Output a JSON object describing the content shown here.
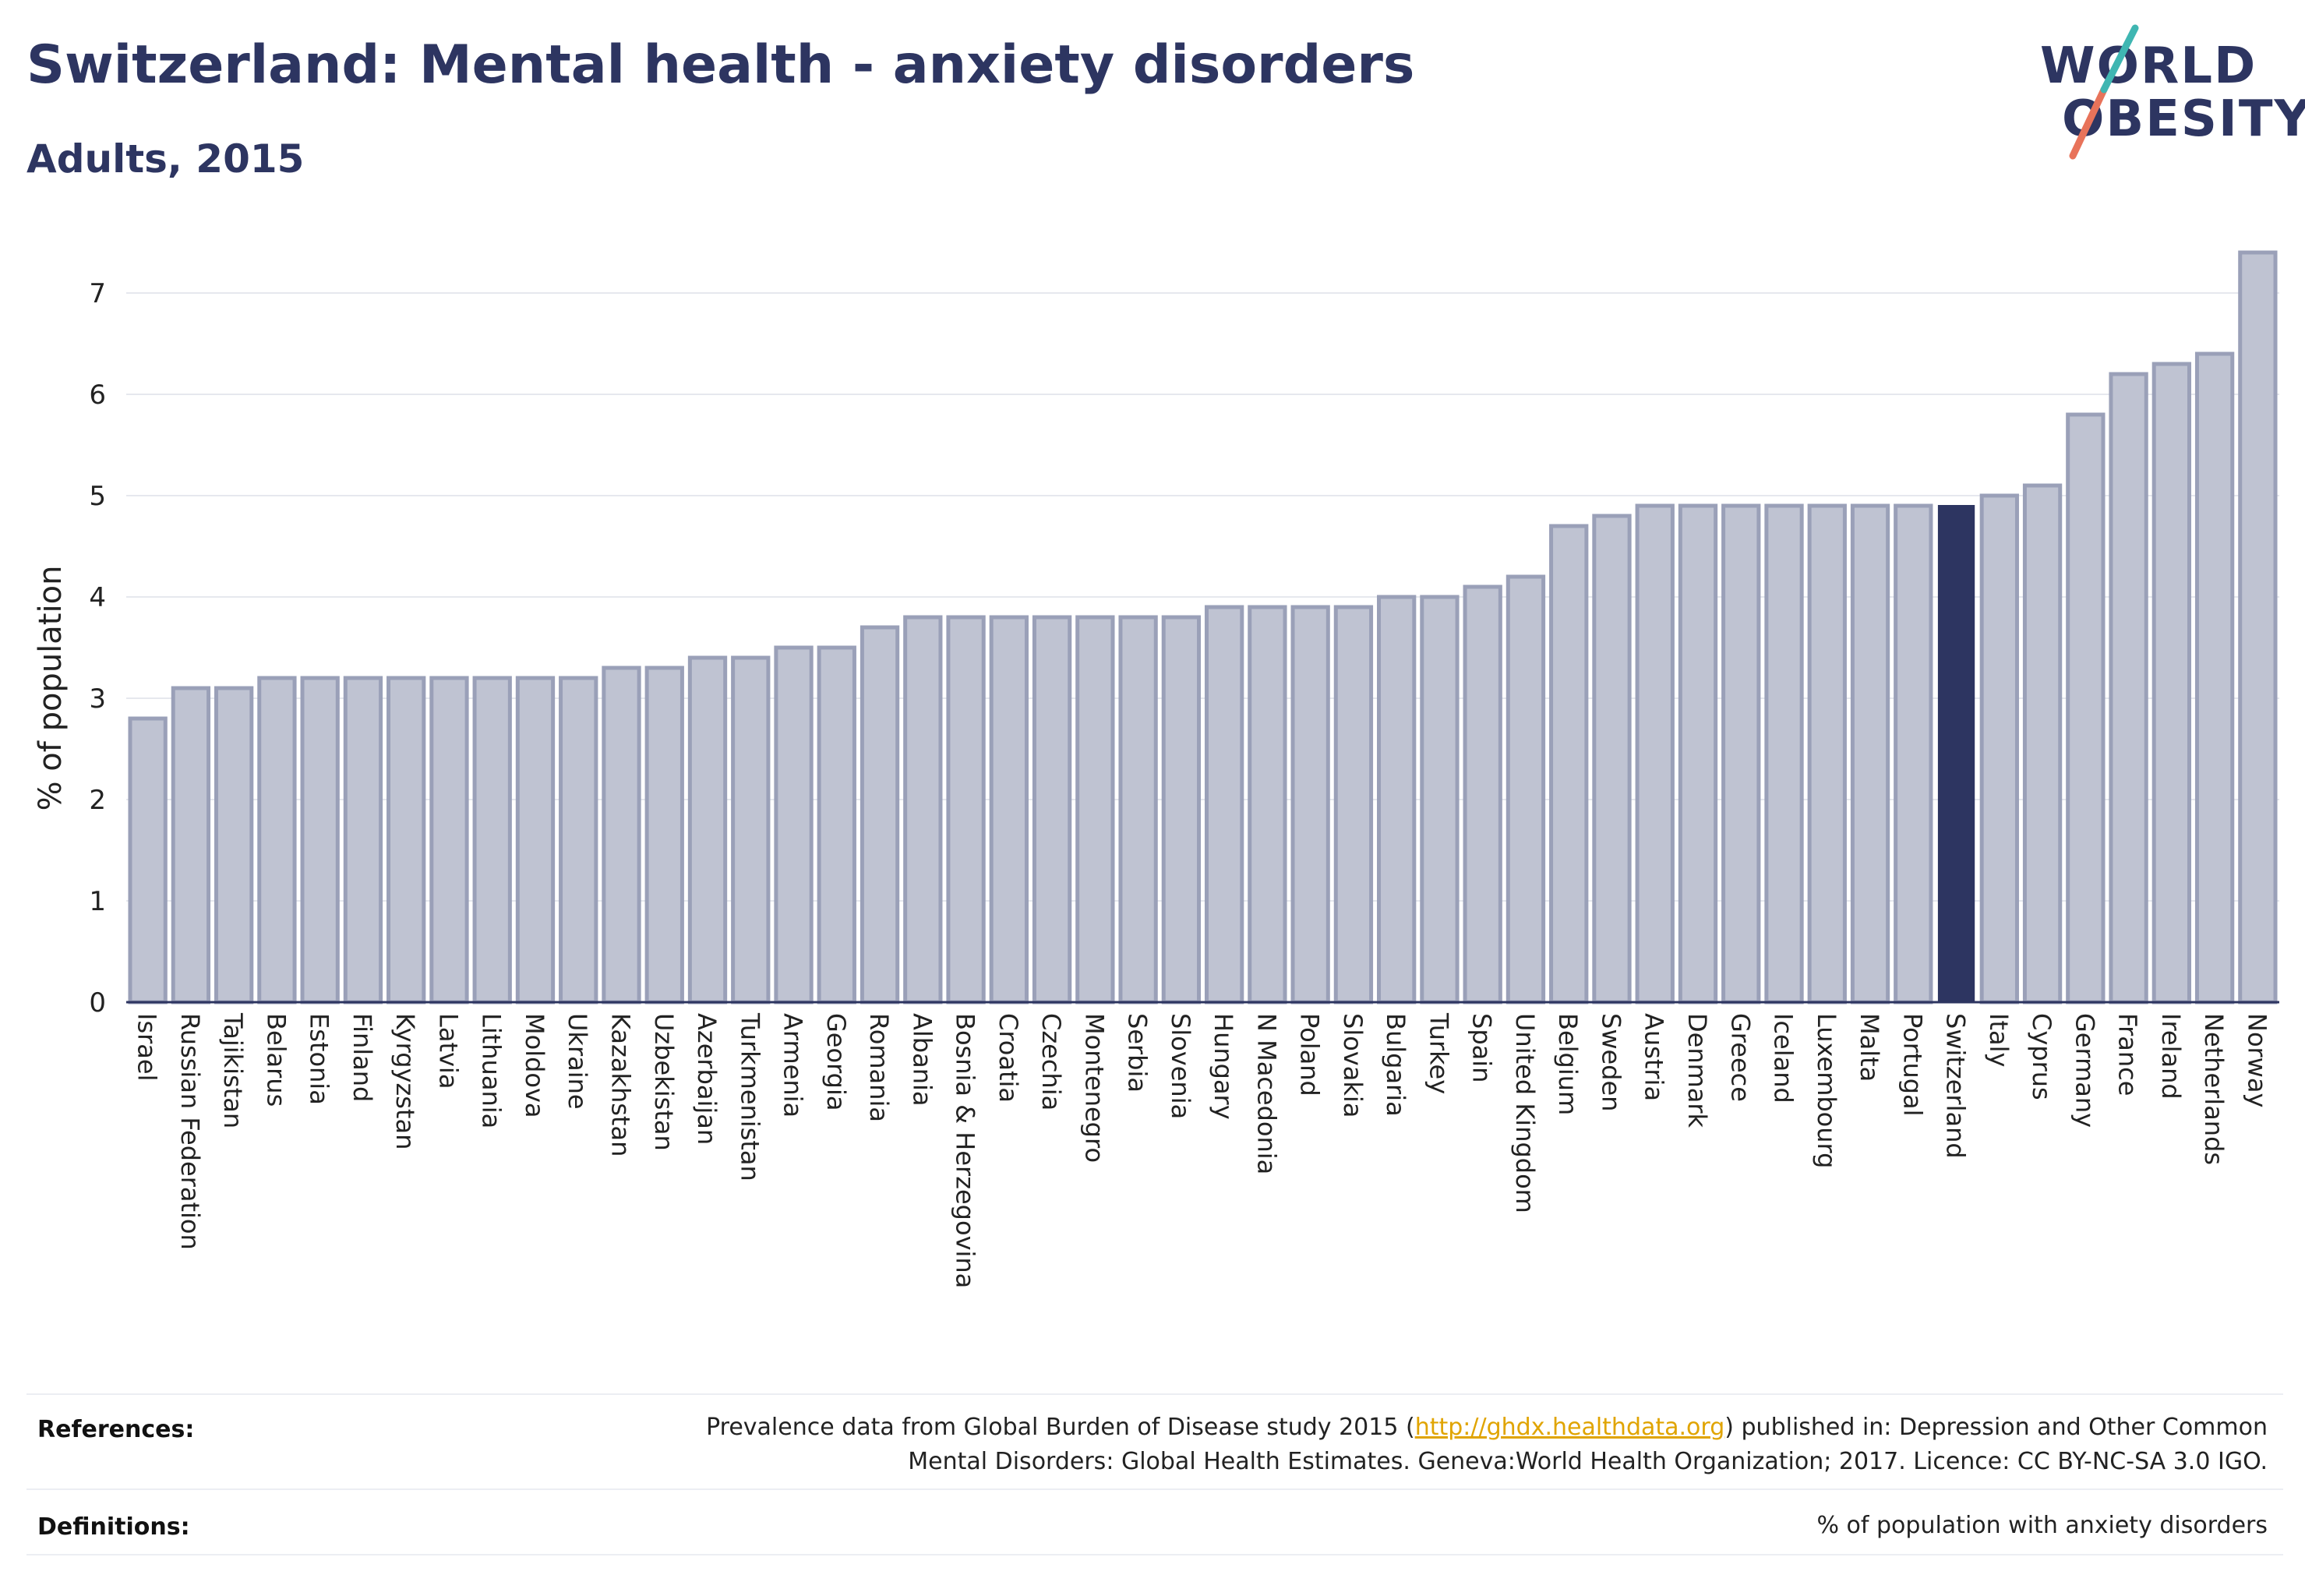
{
  "title": "Switzerland: Mental health - anxiety disorders",
  "subtitle": "Adults, 2015",
  "logo": {
    "line1": "WORLD",
    "line2": "OBESITY"
  },
  "colors": {
    "text": "#2d3561",
    "bar": "#bfc3d2",
    "bar_outline": "#9aa0b8",
    "highlight": "#2d3561",
    "grid": "#e6e8ee",
    "link": "#e0a400"
  },
  "chart_data": {
    "type": "bar",
    "ylabel": "% of population",
    "xlabel": "",
    "ylim": [
      0,
      7.5
    ],
    "yticks": [
      0,
      1,
      2,
      3,
      4,
      5,
      6,
      7
    ],
    "grid": true,
    "highlight": "Switzerland",
    "categories": [
      "Israel",
      "Russian Federation",
      "Tajikistan",
      "Belarus",
      "Estonia",
      "Finland",
      "Kyrgyzstan",
      "Latvia",
      "Lithuania",
      "Moldova",
      "Ukraine",
      "Kazakhstan",
      "Uzbekistan",
      "Azerbaijan",
      "Turkmenistan",
      "Armenia",
      "Georgia",
      "Romania",
      "Albania",
      "Bosnia & Herzegovina",
      "Croatia",
      "Czechia",
      "Montenegro",
      "Serbia",
      "Slovenia",
      "Hungary",
      "N Macedonia",
      "Poland",
      "Slovakia",
      "Bulgaria",
      "Turkey",
      "Spain",
      "United Kingdom",
      "Belgium",
      "Sweden",
      "Austria",
      "Denmark",
      "Greece",
      "Iceland",
      "Luxembourg",
      "Malta",
      "Portugal",
      "Switzerland",
      "Italy",
      "Cyprus",
      "Germany",
      "France",
      "Ireland",
      "Netherlands",
      "Norway"
    ],
    "values": [
      2.8,
      3.1,
      3.1,
      3.2,
      3.2,
      3.2,
      3.2,
      3.2,
      3.2,
      3.2,
      3.2,
      3.3,
      3.3,
      3.4,
      3.4,
      3.5,
      3.5,
      3.7,
      3.8,
      3.8,
      3.8,
      3.8,
      3.8,
      3.8,
      3.8,
      3.9,
      3.9,
      3.9,
      3.9,
      4.0,
      4.0,
      4.1,
      4.2,
      4.7,
      4.8,
      4.9,
      4.9,
      4.9,
      4.9,
      4.9,
      4.9,
      4.9,
      4.9,
      5.0,
      5.1,
      5.8,
      6.2,
      6.3,
      6.4,
      7.4
    ]
  },
  "footer": {
    "references_label": "References:",
    "references_text_before": "Prevalence data from Global Burden of Disease study 2015 (",
    "references_link": "http://ghdx.healthdata.org",
    "references_text_after": ") published in: Depression and Other Common",
    "references_text_line2": "Mental Disorders: Global Health Estimates. Geneva:World Health Organization; 2017. Licence: CC BY-NC-SA 3.0 IGO.",
    "definitions_label": "Definitions:",
    "definitions_text": "% of population with anxiety disorders"
  }
}
